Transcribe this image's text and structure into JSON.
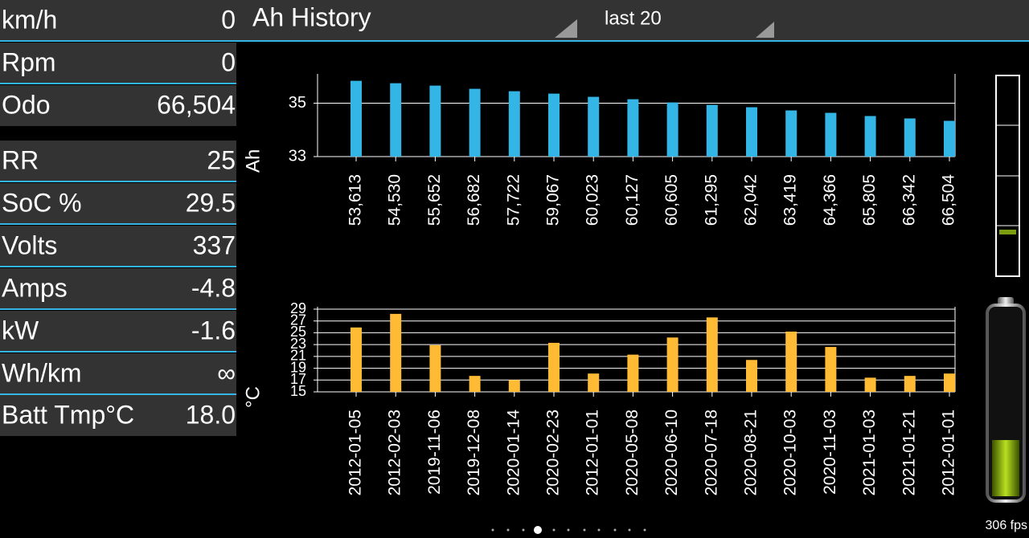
{
  "header": {
    "title": "Ah History",
    "range": "last 20"
  },
  "sidebar": {
    "rows": [
      {
        "label": "km/h",
        "value": "0"
      },
      {
        "label": "Rpm",
        "value": "0"
      },
      {
        "label": "Odo",
        "value": "66,504"
      },
      {
        "label": "RR",
        "value": "25"
      },
      {
        "label": "SoC %",
        "value": "29.5"
      },
      {
        "label": "Volts",
        "value": "337"
      },
      {
        "label": "Amps",
        "value": "-4.8"
      },
      {
        "label": "kW",
        "value": "-1.6"
      },
      {
        "label": "Wh/km",
        "value": "∞"
      },
      {
        "label": "Batt Tmp°C",
        "value": "18.0"
      }
    ]
  },
  "fps": "306 fps",
  "chart_data": [
    {
      "type": "bar",
      "y_label": "Ah",
      "color": "#33b5e5",
      "grid": true,
      "categories": [
        "53,613",
        "54,530",
        "55,652",
        "56,682",
        "57,722",
        "59,067",
        "60,023",
        "60,127",
        "60,605",
        "61,295",
        "62,042",
        "63,419",
        "64,366",
        "65,805",
        "66,342",
        "66,504"
      ],
      "values": [
        35.84,
        35.75,
        35.66,
        35.54,
        35.45,
        35.36,
        35.24,
        35.15,
        35.03,
        34.94,
        34.85,
        34.73,
        34.64,
        34.52,
        34.43,
        34.34
      ],
      "ylim": [
        33,
        36.1
      ],
      "yticks": [
        33,
        35
      ]
    },
    {
      "type": "bar",
      "y_label": "°C",
      "color": "#ffbb33",
      "grid": true,
      "categories": [
        "2012-01-05",
        "2012-02-03",
        "2019-11-06",
        "2019-12-08",
        "2020-01-14",
        "2020-02-23",
        "2012-01-01",
        "2020-05-08",
        "2020-06-10",
        "2020-07-18",
        "2020-08-21",
        "2020-10-03",
        "2020-11-03",
        "2021-01-03",
        "2021-01-21",
        "2012-01-01"
      ],
      "values": [
        25.9,
        28.2,
        22.9,
        17.7,
        17.0,
        23.3,
        18.1,
        21.3,
        24.2,
        27.6,
        20.4,
        25.2,
        22.6,
        17.4,
        17.7,
        18.1
      ],
      "ylim": [
        15,
        29
      ],
      "yticks": [
        15,
        17,
        19,
        21,
        23,
        25,
        27,
        29
      ]
    }
  ]
}
